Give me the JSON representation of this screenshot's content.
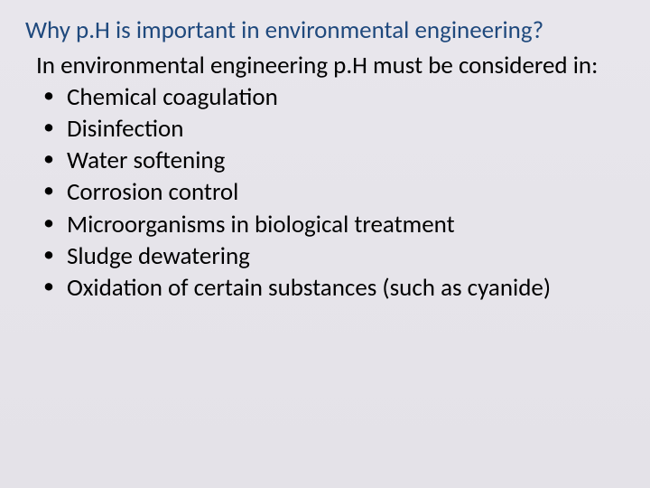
{
  "slide": {
    "title": "Why p.H is important in environmental engineering?",
    "intro": "In environmental engineering p.H must be considered in:",
    "bullets": [
      "Chemical coagulation",
      "Disinfection",
      "Water softening",
      "Corrosion control",
      "Microorganisms in biological treatment",
      "Sludge dewatering",
      "Oxidation of certain substances (such as cyanide)"
    ],
    "colors": {
      "title_color": "#1f497d",
      "body_color": "#000000",
      "background_top": "#e8e6ec",
      "background_bottom": "#e4e2e8"
    },
    "typography": {
      "title_fontsize": 27,
      "body_fontsize": 27,
      "font_family": "Calibri"
    }
  }
}
